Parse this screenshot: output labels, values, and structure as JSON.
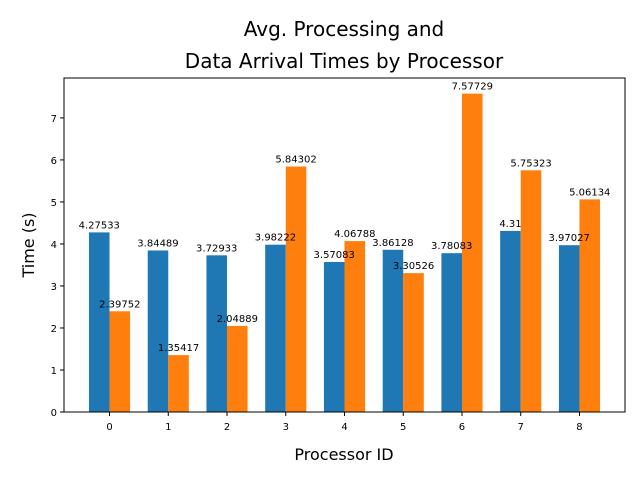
{
  "chart_data": {
    "type": "bar",
    "title": [
      "Avg. Processing and",
      "Data Arrival Times by Processor"
    ],
    "xlabel": "Processor ID",
    "ylabel": "Time (s)",
    "categories": [
      "0",
      "1",
      "2",
      "3",
      "4",
      "5",
      "6",
      "7",
      "8"
    ],
    "ylim": [
      0,
      7.95
    ],
    "yticks": [
      0,
      1,
      2,
      3,
      4,
      5,
      6,
      7
    ],
    "grid": false,
    "series": [
      {
        "color": "#1f77b4",
        "values": [
          4.27533,
          3.84489,
          3.72933,
          3.98222,
          3.57083,
          3.86128,
          3.78083,
          4.31,
          3.97027
        ],
        "labels": [
          "4.27533",
          "3.84489",
          "3.72933",
          "3.98222",
          "3.57083",
          "3.86128",
          "3.78083",
          "4.31",
          "3.97027"
        ]
      },
      {
        "color": "#ff7f0e",
        "values": [
          2.39752,
          1.35417,
          2.04889,
          5.84302,
          4.06788,
          3.30526,
          7.57729,
          5.75323,
          5.06134
        ],
        "labels": [
          "2.39752",
          "1.35417",
          "2.04889",
          "5.84302",
          "4.06788",
          "3.30526",
          "7.57729",
          "5.75323",
          "5.06134"
        ]
      }
    ]
  }
}
